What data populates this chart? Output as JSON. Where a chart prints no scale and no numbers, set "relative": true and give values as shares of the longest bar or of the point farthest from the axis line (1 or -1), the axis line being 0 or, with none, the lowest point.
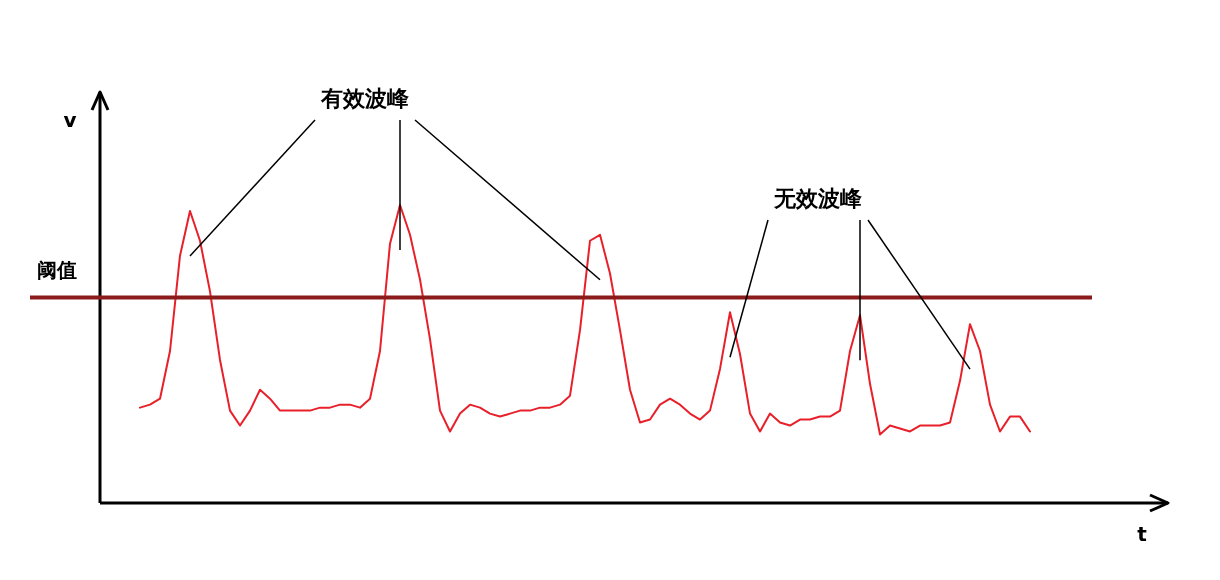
{
  "chart_data": {
    "type": "line",
    "relative": true,
    "xlabel": "t",
    "ylabel": "v",
    "categories": [
      null,
      null,
      null,
      null,
      null,
      null,
      null,
      null,
      null,
      null,
      null,
      null,
      null,
      null,
      null,
      null,
      null,
      null,
      null,
      null,
      null,
      null,
      null,
      null,
      null,
      null,
      null,
      null,
      null,
      null,
      null,
      null,
      null,
      null,
      null,
      null,
      null,
      null,
      null,
      null,
      null,
      null,
      null,
      null,
      null,
      null,
      null,
      null,
      null,
      null,
      null,
      null,
      null,
      null,
      null,
      null,
      null,
      null,
      null,
      null,
      null,
      null,
      null,
      null,
      null,
      null,
      null,
      null,
      null,
      null,
      null,
      null,
      null,
      null,
      null,
      null,
      null,
      null,
      null,
      null,
      null,
      null,
      null,
      null,
      null,
      null,
      null,
      null,
      null,
      null,
      null,
      null,
      null,
      null,
      null,
      null,
      null,
      null,
      null,
      null,
      null,
      null,
      null,
      null,
      null,
      null,
      null
    ],
    "series": [
      {
        "color": "#e8202a",
        "values": [
          null,
          null,
          null,
          null,
          0.32,
          0.33,
          0.35,
          0.51,
          0.83,
          0.98,
          0.88,
          0.71,
          0.48,
          0.31,
          0.26,
          0.31,
          0.38,
          0.35,
          0.31,
          0.31,
          0.31,
          0.31,
          0.32,
          0.32,
          0.33,
          0.33,
          0.32,
          0.35,
          0.51,
          0.87,
          1,
          0.9,
          0.75,
          0.55,
          0.31,
          0.24,
          0.3,
          0.33,
          0.32,
          0.3,
          0.29,
          0.3,
          0.31,
          0.31,
          0.32,
          0.32,
          0.33,
          0.36,
          0.58,
          0.88,
          0.9,
          0.77,
          0.58,
          0.38,
          0.27,
          0.28,
          0.33,
          0.35,
          0.33,
          0.3,
          0.28,
          0.31,
          0.45,
          0.64,
          0.5,
          0.3,
          0.24,
          0.3,
          0.27,
          0.26,
          0.28,
          0.28,
          0.29,
          0.29,
          0.31,
          0.51,
          0.63,
          0.4,
          0.23,
          0.26,
          0.25,
          0.24,
          0.26,
          0.26,
          0.26,
          0.27,
          0.41,
          0.6,
          0.51,
          0.33,
          0.24,
          0.29,
          0.29,
          0.24,
          null,
          null,
          null,
          null,
          null,
          null,
          null,
          null,
          null,
          null,
          null,
          null,
          null
        ]
      }
    ],
    "ref_lines": [
      {
        "axis": "y",
        "value": 0.69,
        "label": "阈值",
        "color": "#8b1a1a"
      }
    ],
    "annotations": [
      "有效波峰",
      "无效波峰"
    ],
    "legend": false,
    "marker": "none",
    "line_style": "solid"
  }
}
